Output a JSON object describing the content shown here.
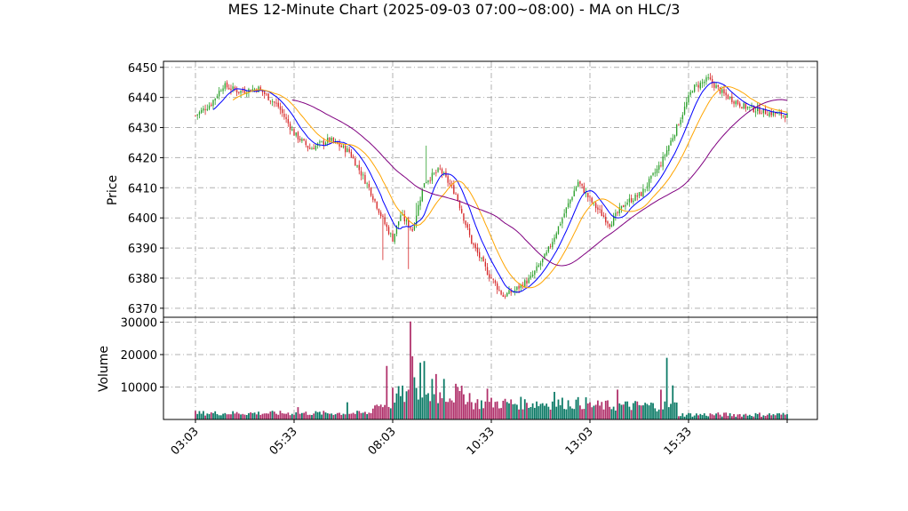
{
  "chart_data": {
    "type": "candlestick",
    "title": "MES 12-Minute Chart (2025-09-03 07:00~08:00) - MA on HLC/3",
    "price_panel": {
      "ylabel": "Price",
      "ylim": [
        6367,
        6452
      ],
      "yticks": [
        6370,
        6380,
        6390,
        6400,
        6410,
        6420,
        6430,
        6440,
        6450
      ],
      "grid": true
    },
    "volume_panel": {
      "ylabel": "Volume",
      "ylim": [
        0,
        31500
      ],
      "yticks": [
        10000,
        20000,
        30000
      ],
      "grid": true
    },
    "xticks": [
      {
        "index": 0,
        "label": "03:03"
      },
      {
        "index": 50,
        "label": "05:33"
      },
      {
        "index": 100,
        "label": "08:03"
      },
      {
        "index": 150,
        "label": "10:33"
      },
      {
        "index": 200,
        "label": "13:03"
      },
      {
        "index": 250,
        "label": "15:33"
      },
      {
        "index": 300,
        "label": ""
      }
    ],
    "bar_count": 301,
    "colors": {
      "up": "#2ca02c",
      "down": "#d62728",
      "vol_up": "#0b7a66",
      "vol_down": "#b0306a",
      "ma_fast": "#0000ff",
      "ma_mid": "#ffa500",
      "ma_slow": "#800080"
    },
    "price_path": [
      {
        "i": 0,
        "p": 6434
      },
      {
        "i": 8,
        "p": 6438
      },
      {
        "i": 14,
        "p": 6444
      },
      {
        "i": 22,
        "p": 6442
      },
      {
        "i": 32,
        "p": 6443
      },
      {
        "i": 42,
        "p": 6437
      },
      {
        "i": 50,
        "p": 6428
      },
      {
        "i": 58,
        "p": 6423
      },
      {
        "i": 68,
        "p": 6426
      },
      {
        "i": 78,
        "p": 6422
      },
      {
        "i": 88,
        "p": 6410
      },
      {
        "i": 96,
        "p": 6398
      },
      {
        "i": 100,
        "p": 6393
      },
      {
        "i": 104,
        "p": 6401
      },
      {
        "i": 110,
        "p": 6396
      },
      {
        "i": 116,
        "p": 6412
      },
      {
        "i": 124,
        "p": 6416
      },
      {
        "i": 132,
        "p": 6408
      },
      {
        "i": 140,
        "p": 6392
      },
      {
        "i": 148,
        "p": 6382
      },
      {
        "i": 156,
        "p": 6374
      },
      {
        "i": 162,
        "p": 6376
      },
      {
        "i": 170,
        "p": 6380
      },
      {
        "i": 178,
        "p": 6388
      },
      {
        "i": 186,
        "p": 6400
      },
      {
        "i": 194,
        "p": 6412
      },
      {
        "i": 200,
        "p": 6406
      },
      {
        "i": 210,
        "p": 6398
      },
      {
        "i": 218,
        "p": 6405
      },
      {
        "i": 226,
        "p": 6408
      },
      {
        "i": 236,
        "p": 6418
      },
      {
        "i": 244,
        "p": 6430
      },
      {
        "i": 252,
        "p": 6443
      },
      {
        "i": 260,
        "p": 6446
      },
      {
        "i": 268,
        "p": 6441
      },
      {
        "i": 278,
        "p": 6437
      },
      {
        "i": 290,
        "p": 6435
      },
      {
        "i": 300,
        "p": 6434
      }
    ],
    "volume_spikes": [
      {
        "i": 97,
        "v": 16500
      },
      {
        "i": 109,
        "v": 30200
      },
      {
        "i": 110,
        "v": 19500
      },
      {
        "i": 111,
        "v": 13000
      },
      {
        "i": 114,
        "v": 17500
      },
      {
        "i": 116,
        "v": 18000
      },
      {
        "i": 120,
        "v": 12500
      },
      {
        "i": 122,
        "v": 14000
      },
      {
        "i": 126,
        "v": 12500
      },
      {
        "i": 132,
        "v": 11000
      },
      {
        "i": 148,
        "v": 9500
      },
      {
        "i": 182,
        "v": 8500
      },
      {
        "i": 214,
        "v": 9200
      },
      {
        "i": 236,
        "v": 9200
      },
      {
        "i": 239,
        "v": 19000
      },
      {
        "i": 242,
        "v": 10500
      },
      {
        "i": 77,
        "v": 5300
      },
      {
        "i": 52,
        "v": 3800
      }
    ]
  }
}
